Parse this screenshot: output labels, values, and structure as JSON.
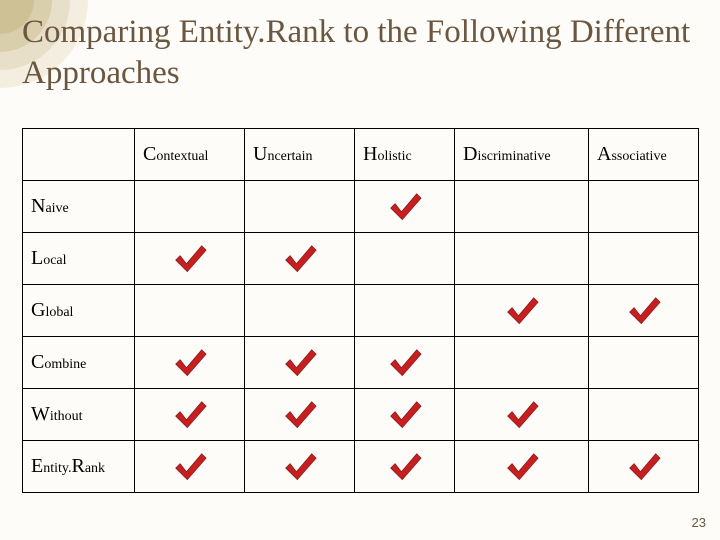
{
  "title": "Comparing Entity.Rank to the Following Different Approaches",
  "columns": [
    {
      "label": "Contextual"
    },
    {
      "label": "Uncertain"
    },
    {
      "label": "Holistic"
    },
    {
      "label": "Discriminative"
    },
    {
      "label": "Associative"
    }
  ],
  "rows": [
    {
      "label": "Naive",
      "cells": [
        false,
        false,
        true,
        false,
        false
      ]
    },
    {
      "label": "Local",
      "cells": [
        true,
        true,
        false,
        false,
        false
      ]
    },
    {
      "label": "Global",
      "cells": [
        false,
        false,
        false,
        true,
        true
      ]
    },
    {
      "label": "Combine",
      "cells": [
        true,
        true,
        true,
        false,
        false
      ]
    },
    {
      "label": "Without",
      "cells": [
        true,
        true,
        true,
        true,
        false
      ]
    },
    {
      "label": "Entity.Rank",
      "cells": [
        true,
        true,
        true,
        true,
        true
      ]
    }
  ],
  "checkmark": {
    "color": "#c71f1f",
    "shadow": "#8a1414"
  },
  "decoration": {
    "colors": [
      "#e8e0c8",
      "#d4c8a0",
      "#b8a878"
    ]
  },
  "pageNumber": "23"
}
